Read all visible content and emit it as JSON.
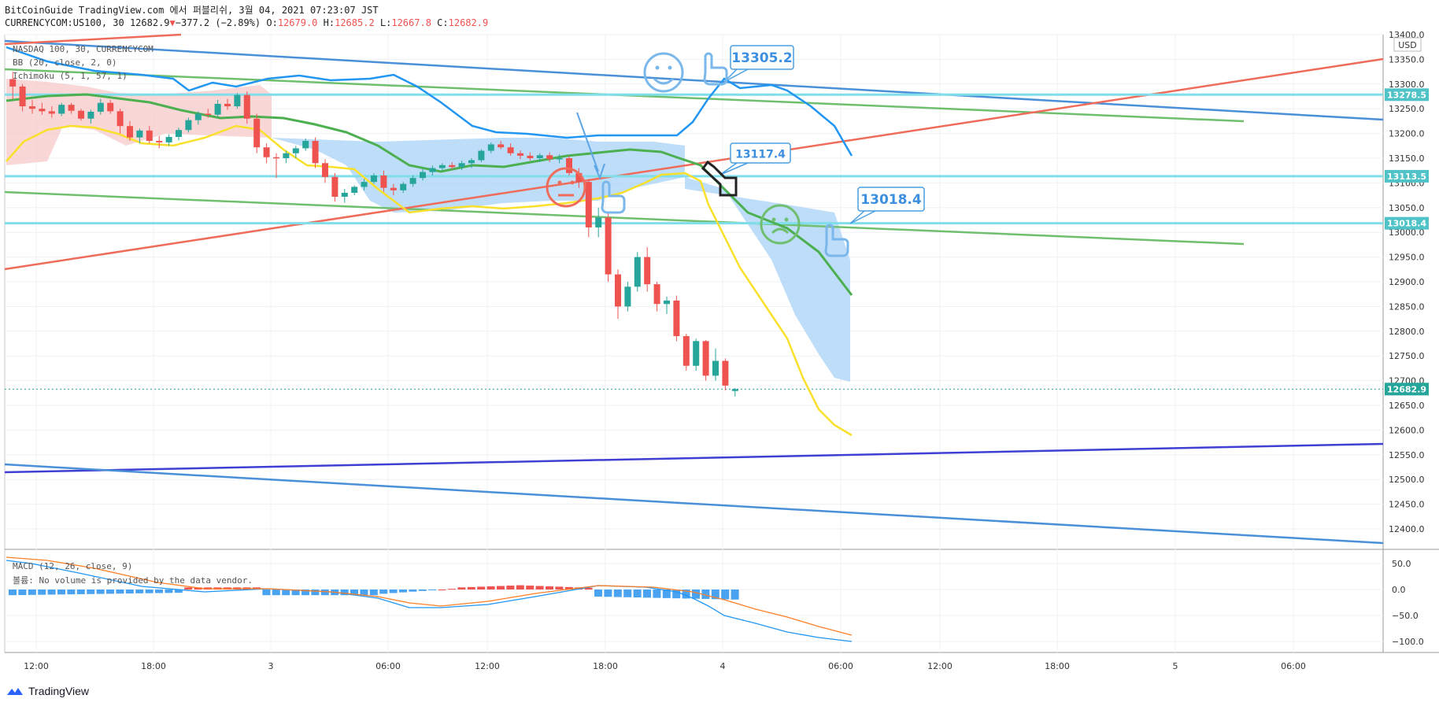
{
  "header": {
    "line1": "BitCoinGuide TradingView.com 에서 퍼블리쉬, 3월 04, 2021 07:23:07 JST",
    "symbol": "CURRENCYCOM:US100, 30",
    "last": "12682.9",
    "change_arrow": "▼",
    "change": "−377.2 (−2.89%)",
    "o_label": "O:",
    "o_val": "12679.0",
    "h_label": "H:",
    "h_val": "12685.2",
    "l_label": "L:",
    "l_val": "12667.8",
    "c_label": "C:",
    "c_val": "12682.9"
  },
  "legend": {
    "line1": "NASDAQ 100, 30, CURRENCYCOM",
    "line2": "BB (20, close, 2, 0)",
    "line3": "Ichimoku (5, 1, 57, 1)",
    "macd": "MACD (12, 26, close, 9)",
    "volume": "볼륨: No volume is provided by the data vendor."
  },
  "currency": "USD",
  "brand": "TradingView",
  "colors": {
    "up": "#26a69a",
    "down": "#ef5350",
    "bb": "#2196f3",
    "kijun": "#4caf50",
    "yellow": "#f9e02b",
    "blue_line": "#4a90d9",
    "red_line": "#ef6c5a",
    "green_line": "#6fbf6f",
    "cyan": "#80deea",
    "purple": "#3f3fd4",
    "macd_line": "#2196f3",
    "signal_line": "#ff7f27"
  },
  "chart_data": {
    "type": "candlestick",
    "price_axis": {
      "min": 12350,
      "max": 13400,
      "ticks": [
        "13400.0",
        "13350.0",
        "13300.0",
        "13250.0",
        "13200.0",
        "13150.0",
        "13100.0",
        "13050.0",
        "13000.0",
        "12950.0",
        "12900.0",
        "12850.0",
        "12800.0",
        "12750.0",
        "12700.0",
        "12650.0",
        "12600.0",
        "12550.0",
        "12500.0",
        "12450.0",
        "12400.0"
      ]
    },
    "time_axis": [
      "12:00",
      "18:00",
      "3",
      "06:00",
      "12:00",
      "18:00",
      "4",
      "06:00",
      "12:00",
      "18:00",
      "5",
      "06:00"
    ],
    "price_labels": [
      {
        "value": 13278.5,
        "text": "13278.5",
        "color": "#4fc3c7"
      },
      {
        "value": 13113.5,
        "text": "13113.5",
        "color": "#4fc3c7"
      },
      {
        "value": 13018.4,
        "text": "13018.4",
        "color": "#4fc3c7"
      },
      {
        "value": 12682.9,
        "text": "12682.9",
        "color": "#26a69a"
      }
    ],
    "annotations": [
      {
        "text": "13305.2"
      },
      {
        "text": "13117.4"
      },
      {
        "text": "13018.4"
      }
    ],
    "candles": [
      [
        13310,
        13325,
        13270,
        13295
      ],
      [
        13295,
        13300,
        13245,
        13255
      ],
      [
        13255,
        13268,
        13240,
        13250
      ],
      [
        13250,
        13262,
        13238,
        13245
      ],
      [
        13245,
        13255,
        13232,
        13240
      ],
      [
        13240,
        13262,
        13235,
        13258
      ],
      [
        13258,
        13262,
        13240,
        13246
      ],
      [
        13246,
        13250,
        13226,
        13230
      ],
      [
        13230,
        13248,
        13220,
        13244
      ],
      [
        13244,
        13270,
        13238,
        13262
      ],
      [
        13262,
        13268,
        13240,
        13245
      ],
      [
        13245,
        13250,
        13200,
        13215
      ],
      [
        13215,
        13225,
        13185,
        13192
      ],
      [
        13192,
        13210,
        13180,
        13206
      ],
      [
        13206,
        13215,
        13180,
        13185
      ],
      [
        13185,
        13195,
        13170,
        13182
      ],
      [
        13182,
        13198,
        13175,
        13193
      ],
      [
        13193,
        13212,
        13186,
        13207
      ],
      [
        13207,
        13232,
        13202,
        13227
      ],
      [
        13227,
        13245,
        13218,
        13240
      ],
      [
        13240,
        13250,
        13232,
        13238
      ],
      [
        13238,
        13268,
        13233,
        13260
      ],
      [
        13260,
        13270,
        13248,
        13255
      ],
      [
        13255,
        13282,
        13250,
        13278
      ],
      [
        13278,
        13285,
        13220,
        13230
      ],
      [
        13230,
        13240,
        13160,
        13172
      ],
      [
        13172,
        13180,
        13140,
        13152
      ],
      [
        13152,
        13160,
        13110,
        13150
      ],
      [
        13150,
        13165,
        13140,
        13160
      ],
      [
        13160,
        13175,
        13150,
        13170
      ],
      [
        13170,
        13190,
        13165,
        13185
      ],
      [
        13185,
        13192,
        13130,
        13140
      ],
      [
        13140,
        13148,
        13100,
        13112
      ],
      [
        13112,
        13120,
        13062,
        13072
      ],
      [
        13072,
        13088,
        13060,
        13080
      ],
      [
        13080,
        13095,
        13075,
        13092
      ],
      [
        13092,
        13108,
        13085,
        13102
      ],
      [
        13102,
        13120,
        13098,
        13115
      ],
      [
        13115,
        13125,
        13082,
        13090
      ],
      [
        13090,
        13098,
        13075,
        13085
      ],
      [
        13085,
        13102,
        13080,
        13098
      ],
      [
        13098,
        13115,
        13092,
        13110
      ],
      [
        13110,
        13128,
        13105,
        13122
      ],
      [
        13122,
        13135,
        13115,
        13130
      ],
      [
        13130,
        13140,
        13125,
        13136
      ],
      [
        13136,
        13142,
        13128,
        13132
      ],
      [
        13132,
        13145,
        13126,
        13140
      ],
      [
        13140,
        13150,
        13130,
        13146
      ],
      [
        13146,
        13168,
        13142,
        13165
      ],
      [
        13165,
        13182,
        13160,
        13178
      ],
      [
        13178,
        13185,
        13168,
        13172
      ],
      [
        13172,
        13180,
        13155,
        13160
      ],
      [
        13160,
        13166,
        13148,
        13155
      ],
      [
        13155,
        13162,
        13145,
        13150
      ],
      [
        13150,
        13160,
        13142,
        13156
      ],
      [
        13156,
        13162,
        13142,
        13148
      ],
      [
        13148,
        13158,
        13140,
        13150
      ],
      [
        13150,
        13155,
        13115,
        13120
      ],
      [
        13120,
        13130,
        13090,
        13102
      ],
      [
        13102,
        13108,
        12990,
        13010
      ],
      [
        13010,
        13050,
        12990,
        13030
      ],
      [
        13030,
        13040,
        12900,
        12915
      ],
      [
        12915,
        12925,
        12825,
        12850
      ],
      [
        12850,
        12900,
        12840,
        12890
      ],
      [
        12890,
        12960,
        12880,
        12950
      ],
      [
        12950,
        12970,
        12880,
        12895
      ],
      [
        12895,
        12900,
        12840,
        12855
      ],
      [
        12855,
        12870,
        12835,
        12862
      ],
      [
        12862,
        12872,
        12780,
        12790
      ],
      [
        12790,
        12795,
        12720,
        12730
      ],
      [
        12730,
        12785,
        12720,
        12780
      ],
      [
        12780,
        12782,
        12700,
        12710
      ],
      [
        12710,
        12765,
        12700,
        12740
      ],
      [
        12740,
        12745,
        12680,
        12690
      ],
      [
        12679,
        12685.2,
        12667.8,
        12682.9
      ]
    ]
  }
}
